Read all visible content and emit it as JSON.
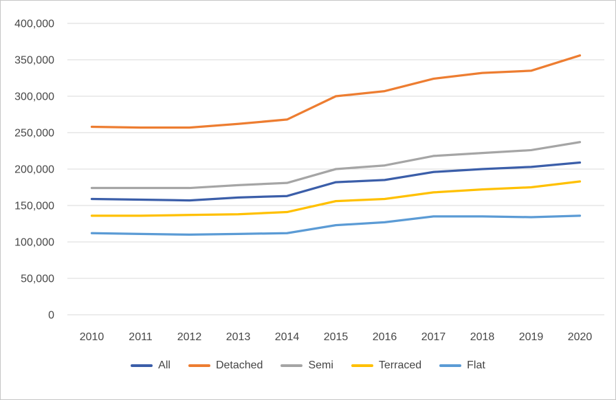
{
  "window": {
    "background": "#ffffff",
    "border_color": "#c6c6c6"
  },
  "style": {
    "gridline_color": "#d9d9d9",
    "axis_text_color": "#474747",
    "line_width": 3.25,
    "axis_font_size": 16
  },
  "chart_data": {
    "type": "line",
    "title": "",
    "xlabel": "",
    "ylabel": "",
    "grid": true,
    "legend_position": "bottom",
    "x_categories": [
      "2010",
      "2011",
      "2012",
      "2013",
      "2014",
      "2015",
      "2016",
      "2017",
      "2018",
      "2019",
      "2020"
    ],
    "y_axis": {
      "min": 0,
      "max": 400000,
      "tick_step": 50000,
      "tick_labels": [
        "0",
        "50,000",
        "100,000",
        "150,000",
        "200,000",
        "250,000",
        "300,000",
        "350,000",
        "400,000"
      ]
    },
    "series": [
      {
        "name": "All",
        "color": "#3b5ea9",
        "values": [
          159000,
          158000,
          157000,
          161000,
          163000,
          182000,
          185000,
          196000,
          200000,
          203000,
          209000
        ]
      },
      {
        "name": "Detached",
        "color": "#ed7d31",
        "values": [
          258000,
          257000,
          257000,
          262000,
          268000,
          300000,
          307000,
          324000,
          332000,
          335000,
          356000
        ]
      },
      {
        "name": "Semi",
        "color": "#a5a5a5",
        "values": [
          174000,
          174000,
          174000,
          178000,
          181000,
          200000,
          205000,
          218000,
          222000,
          226000,
          237000
        ]
      },
      {
        "name": "Terraced",
        "color": "#ffc000",
        "values": [
          136000,
          136000,
          137000,
          138000,
          141000,
          156000,
          159000,
          168000,
          172000,
          175000,
          183000
        ]
      },
      {
        "name": "Flat",
        "color": "#5b9bd5",
        "values": [
          112000,
          111000,
          110000,
          111000,
          112000,
          123000,
          127000,
          135000,
          135000,
          134000,
          136000
        ]
      }
    ]
  }
}
